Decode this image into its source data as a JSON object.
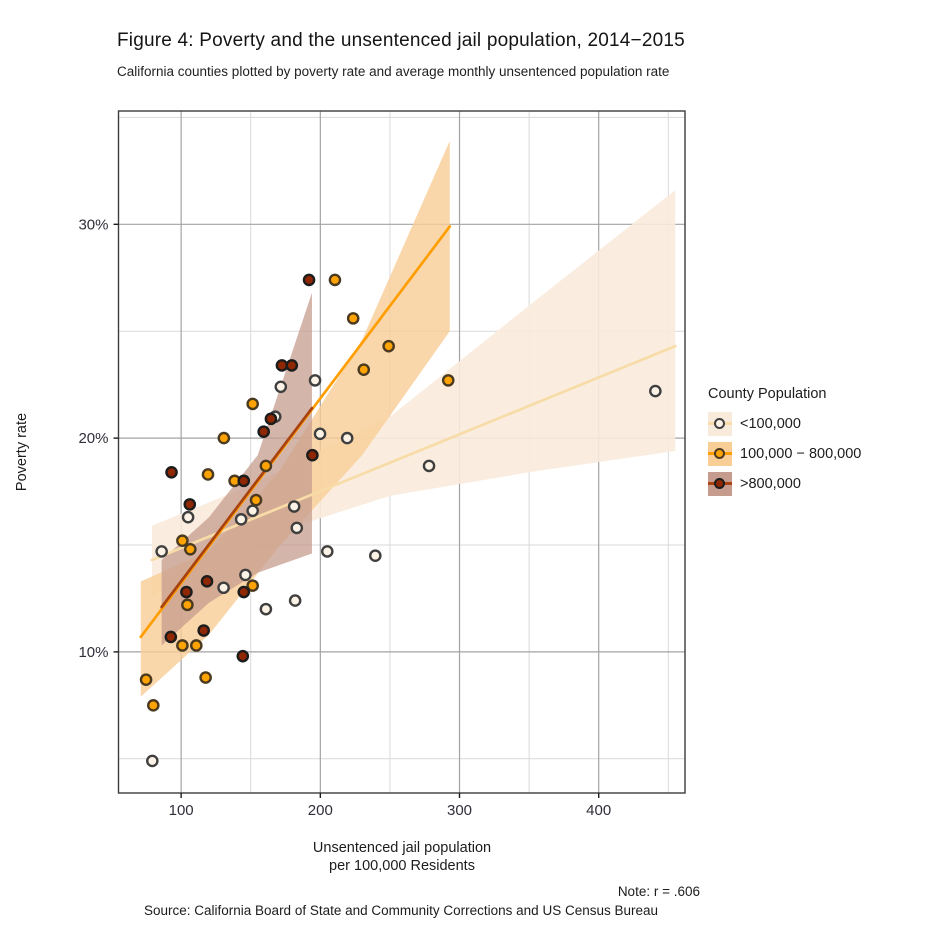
{
  "title": "Figure 4: Poverty and the unsentenced jail population, 2014−2015",
  "subtitle": "California counties plotted by poverty rate and average monthly unsentenced population rate",
  "axes": {
    "y_label": "Poverty rate",
    "x_label_line1": "Unsentenced jail population",
    "x_label_line2": "per 100,000 Residents"
  },
  "note": "Note: r = .606",
  "source": "Source: California Board of State and Community Corrections and US Census Bureau",
  "legend": {
    "title": "County Population",
    "items": [
      {
        "label": "<100,000",
        "group": 0
      },
      {
        "label": "100,000 − 800,000",
        "group": 1
      },
      {
        "label": ">800,000",
        "group": 2
      }
    ]
  },
  "chart_data": {
    "type": "scatter",
    "x_domain": [
      55,
      462
    ],
    "y_domain": [
      3.4,
      35.3
    ],
    "x_ticks_major": [
      100,
      200,
      300,
      400
    ],
    "x_tick_labels": [
      "100",
      "200",
      "300",
      "400"
    ],
    "x_ticks_minor": [
      150,
      250,
      350,
      450
    ],
    "y_ticks_major": [
      10,
      20,
      30
    ],
    "y_tick_labels": [
      "10%",
      "20%",
      "30%"
    ],
    "y_ticks_minor": [
      5,
      15,
      25,
      35
    ],
    "grid": {
      "major_color": "#a3a3a3",
      "minor_color": "#d9d9d9",
      "border_color": "#3c3c3c"
    },
    "groups": [
      {
        "name": "<100,000",
        "point_fill": "#fcf3e6",
        "point_stroke": "#3f3f3f",
        "line_color": "#f8dca8",
        "ribbon_color": "#f9ebdb",
        "ribbon_opacity": 0.9,
        "line": [
          [
            79,
            14.3
          ],
          [
            455,
            24.3
          ]
        ],
        "ribbon": {
          "x": [
            79,
            150,
            250,
            350,
            455
          ],
          "low": [
            12.6,
            15.2,
            17.3,
            18.4,
            19.4
          ],
          "high": [
            15.9,
            17.8,
            21.0,
            26.2,
            31.6
          ]
        },
        "points": [
          [
            196.2,
            22.7
          ],
          [
            171.6,
            22.4
          ],
          [
            167.6,
            21.0
          ],
          [
            199.8,
            20.2
          ],
          [
            219.3,
            20.0
          ],
          [
            105.0,
            16.3
          ],
          [
            151.4,
            16.6
          ],
          [
            143.1,
            16.2
          ],
          [
            181.2,
            16.8
          ],
          [
            183.1,
            15.8
          ],
          [
            86.0,
            14.7
          ],
          [
            146.2,
            13.6
          ],
          [
            130.5,
            13.0
          ],
          [
            160.9,
            12.0
          ],
          [
            181.9,
            12.4
          ],
          [
            79.3,
            4.9
          ],
          [
            205.0,
            14.7
          ],
          [
            278.1,
            18.7
          ],
          [
            440.7,
            22.2
          ],
          [
            239.5,
            14.5
          ]
        ]
      },
      {
        "name": "100,000 − 800,000",
        "point_fill": "#ffa303",
        "point_stroke": "#4a3a20",
        "line_color": "#ff9e00",
        "ribbon_color": "#f9cd96",
        "ribbon_opacity": 0.8,
        "line": [
          [
            71,
            10.7
          ],
          [
            293,
            29.9
          ]
        ],
        "ribbon": {
          "x": [
            71,
            120,
            170,
            230,
            293
          ],
          "low": [
            7.9,
            10.8,
            14.9,
            19.2,
            25.0
          ],
          "high": [
            13.3,
            14.7,
            18.4,
            24.6,
            33.9
          ]
        },
        "points": [
          [
            210.5,
            27.4
          ],
          [
            223.6,
            25.6
          ],
          [
            249.1,
            24.3
          ],
          [
            231.2,
            23.2
          ],
          [
            151.4,
            21.6
          ],
          [
            291.9,
            22.7
          ],
          [
            130.7,
            20.0
          ],
          [
            119.3,
            18.3
          ],
          [
            138.4,
            18.0
          ],
          [
            160.9,
            18.7
          ],
          [
            153.8,
            17.1
          ],
          [
            100.9,
            15.2
          ],
          [
            106.6,
            14.8
          ],
          [
            151.4,
            13.1
          ],
          [
            104.5,
            12.2
          ],
          [
            100.9,
            10.3
          ],
          [
            110.9,
            10.3
          ],
          [
            117.6,
            8.8
          ],
          [
            74.8,
            8.7
          ],
          [
            80.0,
            7.5
          ]
        ]
      },
      {
        "name": ">800,000",
        "point_fill": "#8f2703",
        "point_stroke": "#1c1c1c",
        "line_color": "#a8430f",
        "ribbon_color": "#c59c8e",
        "ribbon_opacity": 0.75,
        "line": [
          [
            86,
            12.1
          ],
          [
            194,
            21.4
          ]
        ],
        "ribbon": {
          "x": [
            86,
            120,
            155,
            194
          ],
          "low": [
            10.3,
            12.3,
            13.7,
            14.6
          ],
          "high": [
            14.3,
            16.3,
            19.2,
            26.8
          ]
        },
        "points": [
          [
            191.9,
            27.4
          ],
          [
            172.4,
            23.4
          ],
          [
            179.5,
            23.4
          ],
          [
            164.5,
            20.9
          ],
          [
            159.3,
            20.3
          ],
          [
            194.3,
            19.2
          ],
          [
            93.1,
            18.4
          ],
          [
            145.0,
            18.0
          ],
          [
            106.2,
            16.9
          ],
          [
            118.6,
            13.3
          ],
          [
            145.0,
            12.8
          ],
          [
            103.8,
            12.8
          ],
          [
            116.2,
            11.0
          ],
          [
            92.6,
            10.7
          ],
          [
            144.3,
            9.8
          ]
        ]
      }
    ]
  }
}
